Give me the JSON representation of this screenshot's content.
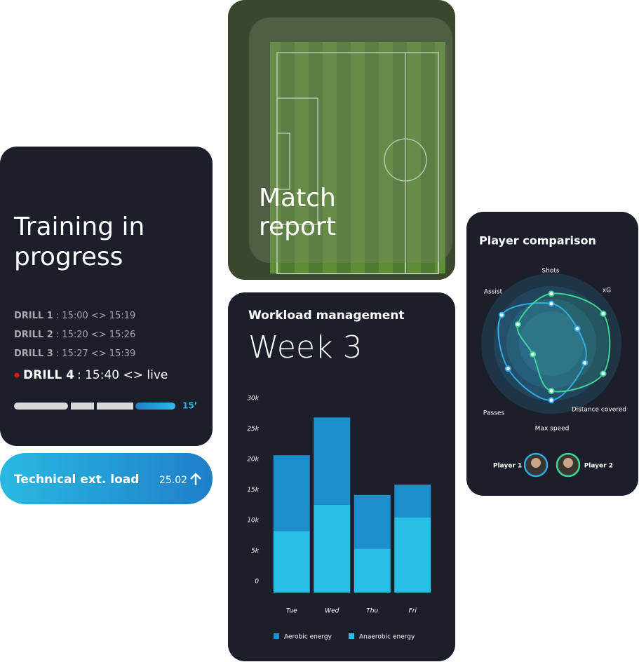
{
  "training": {
    "title": [
      "Training in",
      "progress"
    ],
    "drills": [
      {
        "label": "DRILL 1",
        "time": ": 15:00 <> 15:19"
      },
      {
        "label": "DRILL 2",
        "time": ": 15:20 <> 15:26"
      },
      {
        "label": "DRILL 3",
        "time": ": 15:27 <> 15:39"
      },
      {
        "label": "DRILL 4",
        "time": ": 15:40 <> live"
      }
    ],
    "progress_label": "15’"
  },
  "load": {
    "label": "Technical ext. load",
    "value": "25.02"
  },
  "match": {
    "title": [
      "Match",
      "report"
    ]
  },
  "chart_data": [
    {
      "type": "bar",
      "stacked": true,
      "title": "Workload management",
      "subtitle": "Week 3",
      "categories": [
        "Tue",
        "Wed",
        "Thu",
        "Fri"
      ],
      "series": [
        {
          "name": "Aerobic energy",
          "color": "#1b8fcb",
          "values": [
            12400,
            14300,
            8800,
            5400
          ]
        },
        {
          "name": "Anaerobic energy",
          "color": "#27bfe6",
          "values": [
            10100,
            14400,
            7200,
            12300
          ]
        }
      ],
      "ylim": [
        0,
        30000
      ],
      "yticks": [
        0,
        {
          "value": 5000,
          "label": "5k"
        },
        {
          "value": 10000,
          "label": "10k"
        },
        {
          "value": 15000,
          "label": "15k"
        },
        {
          "value": 20000,
          "label": "20k"
        },
        {
          "value": 25000,
          "label": "25k"
        },
        {
          "value": 30000,
          "label": "30k"
        }
      ]
    },
    {
      "type": "radar",
      "title": "Player comparison",
      "axes": [
        "Shots",
        "xG",
        "Distance covered",
        "Max speed",
        "Passes",
        "Assist"
      ],
      "rlim": [
        0,
        100
      ],
      "series": [
        {
          "name": "Player 1",
          "color": "#2fa8e6",
          "values": [
            60,
            45,
            58,
            85,
            75,
            86
          ]
        },
        {
          "name": "Player 2",
          "color": "#3ed598",
          "values": [
            75,
            90,
            90,
            71,
            32,
            58
          ]
        }
      ]
    }
  ]
}
